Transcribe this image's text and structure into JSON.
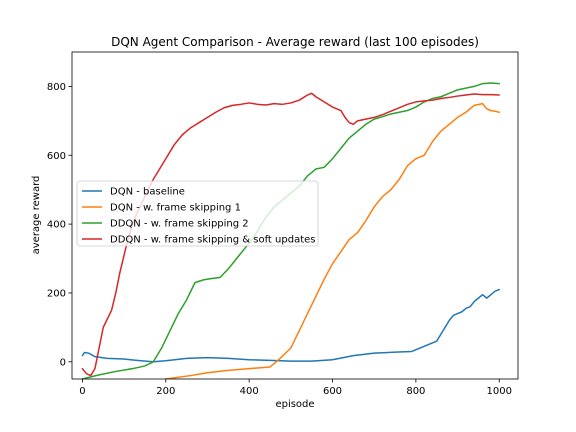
{
  "chart_data": {
    "type": "line",
    "title": "DQN Agent Comparison - Average reward (last 100 episodes)",
    "xlabel": "episode",
    "ylabel": "average reward",
    "xlim": [
      -25,
      1045
    ],
    "ylim": [
      -50,
      900
    ],
    "x_ticks": [
      0,
      200,
      400,
      600,
      800,
      1000
    ],
    "y_ticks": [
      0,
      200,
      400,
      600,
      800
    ],
    "grid": false,
    "legend_position": "center-left",
    "series": [
      {
        "name": "DQN - baseline",
        "color": "#1f77b4",
        "points": [
          [
            0,
            18
          ],
          [
            5,
            27
          ],
          [
            15,
            25
          ],
          [
            30,
            15
          ],
          [
            60,
            10
          ],
          [
            100,
            8
          ],
          [
            140,
            3
          ],
          [
            170,
            0
          ],
          [
            200,
            3
          ],
          [
            250,
            10
          ],
          [
            300,
            12
          ],
          [
            350,
            10
          ],
          [
            400,
            6
          ],
          [
            450,
            4
          ],
          [
            500,
            2
          ],
          [
            550,
            2
          ],
          [
            600,
            6
          ],
          [
            650,
            18
          ],
          [
            700,
            25
          ],
          [
            750,
            28
          ],
          [
            790,
            30
          ],
          [
            810,
            40
          ],
          [
            830,
            50
          ],
          [
            850,
            60
          ],
          [
            860,
            80
          ],
          [
            870,
            100
          ],
          [
            880,
            120
          ],
          [
            890,
            135
          ],
          [
            900,
            140
          ],
          [
            910,
            145
          ],
          [
            920,
            155
          ],
          [
            930,
            160
          ],
          [
            940,
            175
          ],
          [
            950,
            185
          ],
          [
            960,
            195
          ],
          [
            970,
            185
          ],
          [
            980,
            195
          ],
          [
            990,
            205
          ],
          [
            1000,
            210
          ]
        ]
      },
      {
        "name": "DQN - w. frame skipping 1",
        "color": "#ff7f0e",
        "points": [
          [
            200,
            -50
          ],
          [
            260,
            -40
          ],
          [
            300,
            -32
          ],
          [
            350,
            -25
          ],
          [
            400,
            -20
          ],
          [
            450,
            -15
          ],
          [
            470,
            5
          ],
          [
            500,
            40
          ],
          [
            520,
            90
          ],
          [
            540,
            140
          ],
          [
            560,
            190
          ],
          [
            580,
            240
          ],
          [
            600,
            285
          ],
          [
            620,
            320
          ],
          [
            640,
            355
          ],
          [
            660,
            375
          ],
          [
            680,
            410
          ],
          [
            700,
            450
          ],
          [
            720,
            480
          ],
          [
            740,
            500
          ],
          [
            760,
            530
          ],
          [
            780,
            570
          ],
          [
            800,
            590
          ],
          [
            820,
            600
          ],
          [
            840,
            640
          ],
          [
            860,
            670
          ],
          [
            880,
            690
          ],
          [
            900,
            710
          ],
          [
            920,
            725
          ],
          [
            940,
            745
          ],
          [
            960,
            750
          ],
          [
            970,
            735
          ],
          [
            980,
            730
          ],
          [
            990,
            728
          ],
          [
            1000,
            725
          ]
        ]
      },
      {
        "name": "DDQN - w. frame skipping 2",
        "color": "#2ca02c",
        "points": [
          [
            0,
            -50
          ],
          [
            40,
            -38
          ],
          [
            80,
            -28
          ],
          [
            120,
            -20
          ],
          [
            150,
            -12
          ],
          [
            170,
            0
          ],
          [
            190,
            40
          ],
          [
            210,
            90
          ],
          [
            230,
            140
          ],
          [
            250,
            180
          ],
          [
            270,
            230
          ],
          [
            290,
            238
          ],
          [
            310,
            242
          ],
          [
            330,
            245
          ],
          [
            350,
            270
          ],
          [
            370,
            300
          ],
          [
            390,
            330
          ],
          [
            410,
            360
          ],
          [
            420,
            380
          ],
          [
            440,
            420
          ],
          [
            460,
            450
          ],
          [
            480,
            470
          ],
          [
            500,
            490
          ],
          [
            520,
            510
          ],
          [
            540,
            540
          ],
          [
            560,
            560
          ],
          [
            580,
            565
          ],
          [
            600,
            590
          ],
          [
            620,
            620
          ],
          [
            640,
            650
          ],
          [
            660,
            670
          ],
          [
            680,
            690
          ],
          [
            700,
            705
          ],
          [
            720,
            712
          ],
          [
            740,
            720
          ],
          [
            760,
            725
          ],
          [
            780,
            730
          ],
          [
            800,
            740
          ],
          [
            820,
            755
          ],
          [
            840,
            765
          ],
          [
            860,
            770
          ],
          [
            880,
            780
          ],
          [
            900,
            790
          ],
          [
            920,
            795
          ],
          [
            940,
            800
          ],
          [
            960,
            808
          ],
          [
            980,
            810
          ],
          [
            1000,
            808
          ]
        ]
      },
      {
        "name": "DDQN - w. frame skipping & soft updates",
        "color": "#d62728",
        "points": [
          [
            0,
            -20
          ],
          [
            10,
            -35
          ],
          [
            20,
            -40
          ],
          [
            30,
            -20
          ],
          [
            40,
            40
          ],
          [
            50,
            100
          ],
          [
            60,
            125
          ],
          [
            70,
            150
          ],
          [
            80,
            200
          ],
          [
            90,
            260
          ],
          [
            100,
            310
          ],
          [
            110,
            360
          ],
          [
            120,
            400
          ],
          [
            130,
            430
          ],
          [
            140,
            455
          ],
          [
            150,
            480
          ],
          [
            160,
            505
          ],
          [
            170,
            530
          ],
          [
            180,
            550
          ],
          [
            190,
            570
          ],
          [
            200,
            590
          ],
          [
            220,
            630
          ],
          [
            240,
            660
          ],
          [
            260,
            680
          ],
          [
            280,
            695
          ],
          [
            300,
            710
          ],
          [
            320,
            725
          ],
          [
            340,
            738
          ],
          [
            360,
            745
          ],
          [
            380,
            748
          ],
          [
            400,
            752
          ],
          [
            420,
            748
          ],
          [
            440,
            746
          ],
          [
            460,
            750
          ],
          [
            480,
            748
          ],
          [
            500,
            752
          ],
          [
            520,
            760
          ],
          [
            540,
            775
          ],
          [
            550,
            780
          ],
          [
            560,
            770
          ],
          [
            580,
            755
          ],
          [
            600,
            740
          ],
          [
            620,
            730
          ],
          [
            630,
            710
          ],
          [
            640,
            695
          ],
          [
            650,
            690
          ],
          [
            660,
            700
          ],
          [
            680,
            705
          ],
          [
            700,
            710
          ],
          [
            720,
            718
          ],
          [
            740,
            728
          ],
          [
            760,
            738
          ],
          [
            780,
            748
          ],
          [
            800,
            755
          ],
          [
            820,
            758
          ],
          [
            840,
            760
          ],
          [
            860,
            765
          ],
          [
            880,
            768
          ],
          [
            900,
            772
          ],
          [
            920,
            775
          ],
          [
            940,
            778
          ],
          [
            960,
            776
          ],
          [
            980,
            776
          ],
          [
            1000,
            775
          ]
        ]
      }
    ]
  }
}
